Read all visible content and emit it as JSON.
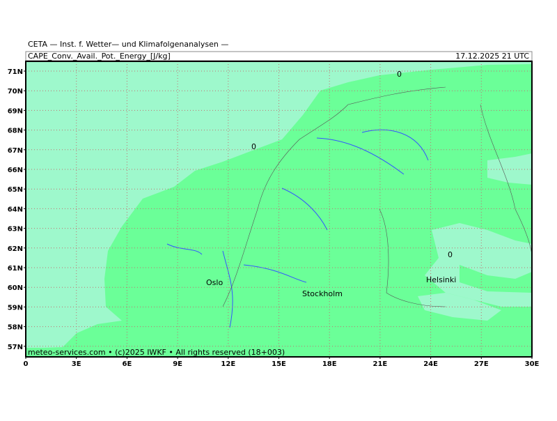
{
  "header": {
    "source": "CETA — Inst. f. Wetter— und Klimafolgenanalysen —",
    "title": "CAPE_Conv._Avail._Pot._Energy_[J/kg]",
    "date": "17.12.2025 21 UTC"
  },
  "map": {
    "lat_labels": [
      "71N",
      "70N",
      "69N",
      "68N",
      "67N",
      "66N",
      "65N",
      "64N",
      "63N",
      "62N",
      "61N",
      "60N",
      "59N",
      "58N",
      "57N"
    ],
    "lon_labels": [
      "0",
      "3E",
      "6E",
      "9E",
      "12E",
      "15E",
      "18E",
      "21E",
      "24E",
      "27E",
      "30E"
    ],
    "cities": [
      "Oslo",
      "Stockholm",
      "Helsinki"
    ],
    "contour_labels": [
      "0",
      "0",
      "0"
    ]
  },
  "footer": {
    "text": "meteo-services.com • (c)2025 IWKF • All rights reserved (18+003)"
  }
}
